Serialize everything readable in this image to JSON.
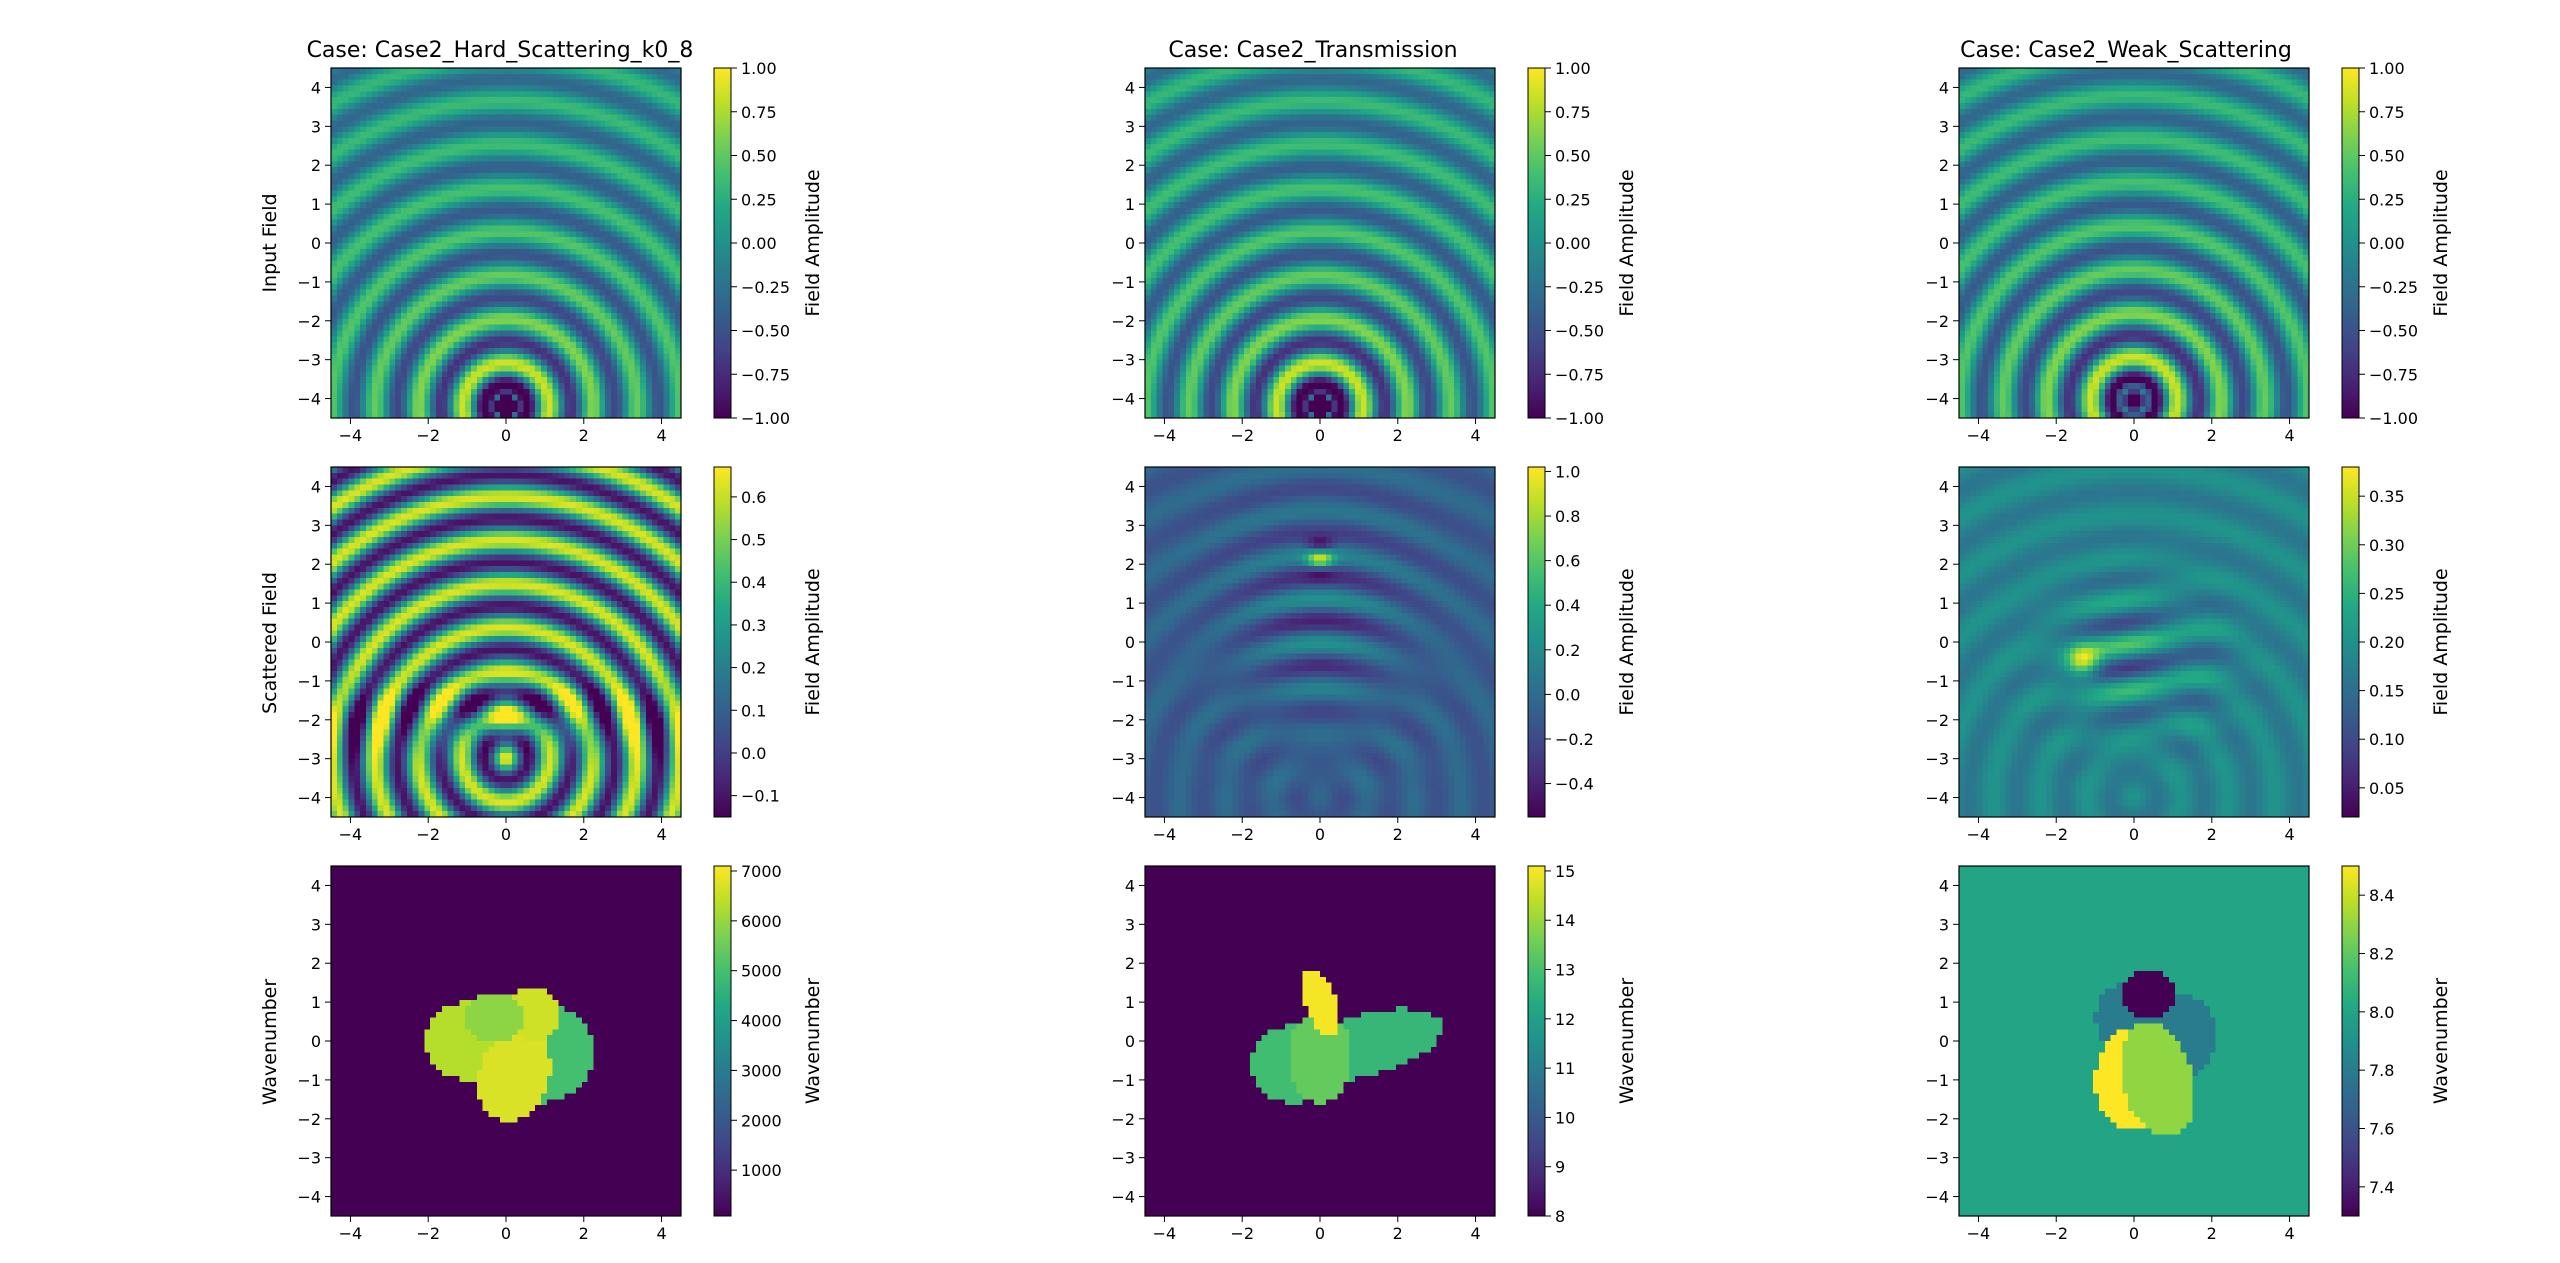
{
  "figure": {
    "row_labels": [
      "Input Field",
      "Scattered Field",
      "Wavenumber"
    ],
    "colorbar_labels": [
      "Field Amplitude",
      "Field Amplitude",
      "Wavenumber"
    ]
  },
  "chart_data": [
    {
      "type": "heatmap",
      "title": "Case: Case2_Hard_Scattering_k0_8",
      "panels": [
        {
          "ylabel": "Input Field",
          "colorbar_label": "Field Amplitude",
          "field": "input",
          "source_y": -4.2,
          "xlim": [
            -4.5,
            4.5
          ],
          "ylim": [
            -4.5,
            4.5
          ],
          "xticks": [
            -4,
            -2,
            0,
            2,
            4
          ],
          "yticks": [
            -4,
            -3,
            -2,
            -1,
            0,
            1,
            2,
            3,
            4
          ],
          "clim": [
            -1.0,
            1.0
          ],
          "cticks": [
            "1.00",
            "0.75",
            "0.50",
            "0.25",
            "0.00",
            "−0.25",
            "−0.50",
            "−0.75",
            "−1.00"
          ]
        },
        {
          "ylabel": "Scattered Field",
          "colorbar_label": "Field Amplitude",
          "field": "scattered",
          "clim": [
            -0.15,
            0.67
          ],
          "cticks": [
            "0.6",
            "0.5",
            "0.4",
            "0.3",
            "0.2",
            "0.1",
            "0.0",
            "−0.1"
          ]
        },
        {
          "ylabel": "Wavenumber",
          "colorbar_label": "Wavenumber",
          "field": "wavenumber",
          "clim": [
            80,
            7100
          ],
          "cticks": [
            "7000",
            "6000",
            "5000",
            "4000",
            "3000",
            "2000",
            "1000"
          ],
          "background": 80,
          "ellipses": [
            {
              "cx": 0.7,
              "cy": -0.3,
              "rx": 1.6,
              "ry": 1.3,
              "rot": 0,
              "value": 5000
            },
            {
              "cx": -1.0,
              "cy": 0.0,
              "rx": 1.1,
              "ry": 1.0,
              "rot": 0,
              "value": 6300
            },
            {
              "cx": 0.2,
              "cy": -0.9,
              "rx": 0.9,
              "ry": 1.2,
              "rot": -20,
              "value": 6700
            },
            {
              "cx": 0.7,
              "cy": 0.7,
              "rx": 0.7,
              "ry": 0.7,
              "rot": 0,
              "value": 6600
            },
            {
              "cx": -0.3,
              "cy": 0.6,
              "rx": 0.8,
              "ry": 0.6,
              "rot": 0,
              "value": 5900
            }
          ]
        }
      ]
    },
    {
      "type": "heatmap",
      "title": "Case: Case2_Transmission",
      "panels": [
        {
          "ylabel": "",
          "colorbar_label": "Field Amplitude",
          "field": "input",
          "source_y": -4.2,
          "clim": [
            -1.0,
            1.0
          ],
          "cticks": [
            "1.00",
            "0.75",
            "0.50",
            "0.25",
            "0.00",
            "−0.25",
            "−0.50",
            "−0.75",
            "−1.00"
          ]
        },
        {
          "ylabel": "",
          "colorbar_label": "Field Amplitude",
          "field": "scattered",
          "clim": [
            -0.55,
            1.02
          ],
          "cticks": [
            "1.0",
            "0.8",
            "0.6",
            "0.4",
            "0.2",
            "0.0",
            "−0.2",
            "−0.4"
          ]
        },
        {
          "ylabel": "",
          "colorbar_label": "Wavenumber",
          "field": "wavenumber",
          "clim": [
            8,
            15.1
          ],
          "cticks": [
            "15",
            "14",
            "13",
            "12",
            "11",
            "10",
            "9",
            "8"
          ],
          "background": 8,
          "ellipses": [
            {
              "cx": 1.2,
              "cy": -0.1,
              "rx": 2.0,
              "ry": 0.8,
              "rot": 15,
              "value": 12.7
            },
            {
              "cx": -0.7,
              "cy": -0.6,
              "rx": 1.1,
              "ry": 1.0,
              "rot": 0,
              "value": 12.9
            },
            {
              "cx": 0.0,
              "cy": -0.4,
              "rx": 0.8,
              "ry": 1.2,
              "rot": 0,
              "value": 13.4
            },
            {
              "cx": 0.0,
              "cy": 1.0,
              "rx": 0.4,
              "ry": 0.9,
              "rot": 20,
              "value": 15
            }
          ]
        }
      ]
    },
    {
      "type": "heatmap",
      "title": "Case: Case2_Weak_Scattering",
      "panels": [
        {
          "ylabel": "",
          "colorbar_label": "Field Amplitude",
          "field": "input",
          "source_y": -4.05,
          "clim": [
            -1.0,
            1.0
          ],
          "cticks": [
            "1.00",
            "0.75",
            "0.50",
            "0.25",
            "0.00",
            "−0.25",
            "−0.50",
            "−0.75",
            "−1.00"
          ]
        },
        {
          "ylabel": "",
          "colorbar_label": "Field Amplitude",
          "field": "scattered",
          "clim": [
            0.02,
            0.38
          ],
          "cticks": [
            "0.35",
            "0.30",
            "0.25",
            "0.20",
            "0.15",
            "0.10",
            "0.05"
          ]
        },
        {
          "ylabel": "",
          "colorbar_label": "Wavenumber",
          "field": "wavenumber",
          "clim": [
            7.3,
            8.5
          ],
          "cticks": [
            "8.4",
            "8.2",
            "8.0",
            "7.8",
            "7.6",
            "7.4"
          ],
          "background": 8.0,
          "ellipses": [
            {
              "cx": 1.2,
              "cy": 0.1,
              "rx": 0.9,
              "ry": 1.1,
              "rot": 0,
              "value": 7.8
            },
            {
              "cx": -0.1,
              "cy": 0.6,
              "rx": 0.9,
              "ry": 0.9,
              "rot": 0,
              "value": 7.8
            },
            {
              "cx": 0.4,
              "cy": 1.2,
              "rx": 0.7,
              "ry": 0.65,
              "rot": 0,
              "value": 7.3
            },
            {
              "cx": -0.1,
              "cy": -1.0,
              "rx": 0.9,
              "ry": 1.3,
              "rot": 0,
              "value": 8.5
            },
            {
              "cx": 0.6,
              "cy": -1.0,
              "rx": 0.9,
              "ry": 1.5,
              "rot": 15,
              "value": 8.3
            }
          ]
        }
      ]
    }
  ]
}
